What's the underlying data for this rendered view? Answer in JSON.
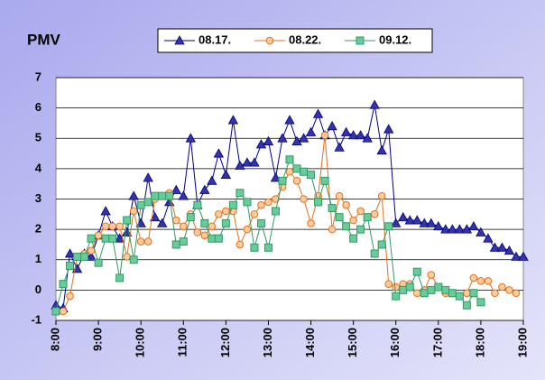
{
  "chart_data": {
    "type": "line",
    "title": "PMV",
    "x": [
      8,
      8.17,
      8.33,
      8.5,
      8.67,
      8.83,
      9,
      9.17,
      9.33,
      9.5,
      9.67,
      9.83,
      10,
      10.17,
      10.33,
      10.5,
      10.67,
      10.83,
      11,
      11.17,
      11.33,
      11.5,
      11.67,
      11.83,
      12,
      12.17,
      12.33,
      12.5,
      12.67,
      12.83,
      13,
      13.17,
      13.33,
      13.5,
      13.67,
      13.83,
      14,
      14.17,
      14.33,
      14.5,
      14.67,
      14.83,
      15,
      15.17,
      15.33,
      15.5,
      15.67,
      15.83,
      16,
      16.17,
      16.33,
      16.5,
      16.67,
      16.83,
      17,
      17.17,
      17.33,
      17.5,
      17.67,
      17.83,
      18,
      18.17,
      18.33,
      18.5,
      18.67,
      18.83,
      19
    ],
    "series": [
      {
        "name": "08.17.",
        "color": "#000080",
        "marker": "triangle",
        "marker_fill": "#3333aa",
        "values": [
          -0.5,
          -0.6,
          1.2,
          0.7,
          1.2,
          1.1,
          1.8,
          2.6,
          2.1,
          1.7,
          1.9,
          3.1,
          2.2,
          3.7,
          2.4,
          2.2,
          2.9,
          3.3,
          3.1,
          5.0,
          2.8,
          3.3,
          3.6,
          4.5,
          3.8,
          5.6,
          4.1,
          4.2,
          4.2,
          4.8,
          4.9,
          3.7,
          5.0,
          5.6,
          4.9,
          5.0,
          5.2,
          5.8,
          5.1,
          5.4,
          4.7,
          5.2,
          5.1,
          5.1,
          5.0,
          6.1,
          4.6,
          5.3,
          2.2,
          2.4,
          2.3,
          2.3,
          2.2,
          2.2,
          2.1,
          2.0,
          2.0,
          2.0,
          2.0,
          2.1,
          1.9,
          1.7,
          1.4,
          1.4,
          1.3,
          1.1,
          1.1
        ]
      },
      {
        "name": "08.22.",
        "color": "#e07020",
        "marker": "circle",
        "marker_fill": "#ffcc99",
        "values": [
          null,
          -0.7,
          -0.2,
          1.1,
          1.2,
          1.3,
          1.8,
          2.1,
          2.1,
          2.1,
          1.1,
          2.6,
          1.6,
          1.6,
          3.0,
          3.1,
          3.2,
          2.3,
          2.1,
          2.5,
          1.9,
          1.8,
          2.1,
          2.5,
          2.6,
          2.6,
          1.5,
          2.0,
          2.5,
          2.8,
          2.9,
          3.0,
          3.4,
          3.9,
          3.6,
          3.0,
          2.2,
          3.1,
          5.1,
          2.0,
          3.1,
          2.8,
          2.3,
          2.6,
          2.4,
          2.5,
          3.1,
          0.2,
          0.1,
          0.2,
          0.2,
          -0.1,
          0.0,
          0.5,
          0.1,
          -0.1,
          -0.1,
          -0.2,
          -0.1,
          0.4,
          0.3,
          0.3,
          -0.1,
          0.1,
          0.0,
          -0.1,
          null
        ]
      },
      {
        "name": "09.12.",
        "color": "#339966",
        "marker": "square",
        "marker_fill": "#66cc99",
        "values": [
          -0.7,
          0.2,
          0.8,
          1.1,
          1.1,
          1.7,
          0.9,
          1.7,
          1.7,
          0.4,
          2.3,
          1.0,
          2.8,
          2.9,
          3.1,
          3.1,
          3.1,
          1.5,
          1.6,
          2.4,
          2.8,
          2.2,
          1.7,
          1.7,
          2.2,
          2.8,
          3.2,
          2.9,
          1.4,
          2.2,
          1.4,
          2.6,
          3.6,
          4.3,
          4.0,
          3.9,
          3.8,
          2.9,
          3.6,
          2.7,
          2.4,
          2.1,
          1.7,
          2.0,
          2.4,
          1.2,
          1.5,
          2.1,
          -0.2,
          0.0,
          0.1,
          0.6,
          -0.1,
          0.0,
          0.1,
          0.0,
          -0.1,
          -0.2,
          -0.5,
          -0.1,
          -0.4,
          null,
          null,
          null,
          null,
          null,
          null
        ]
      }
    ],
    "xlim": [
      8,
      19
    ],
    "xticks": [
      {
        "value": 8,
        "label": "8:00"
      },
      {
        "value": 9,
        "label": "9:00"
      },
      {
        "value": 10,
        "label": "10:00"
      },
      {
        "value": 11,
        "label": "11:00"
      },
      {
        "value": 12,
        "label": "12:00"
      },
      {
        "value": 13,
        "label": "13:00"
      },
      {
        "value": 14,
        "label": "14:00"
      },
      {
        "value": 15,
        "label": "15:00"
      },
      {
        "value": 16,
        "label": "16:00"
      },
      {
        "value": 17,
        "label": "17:00"
      },
      {
        "value": 18,
        "label": "18:00"
      },
      {
        "value": 19,
        "label": "19:00"
      }
    ],
    "ylim": [
      -1,
      7
    ],
    "yticks": [
      -1,
      0,
      1,
      2,
      3,
      4,
      5,
      6,
      7
    ],
    "grid": true
  }
}
